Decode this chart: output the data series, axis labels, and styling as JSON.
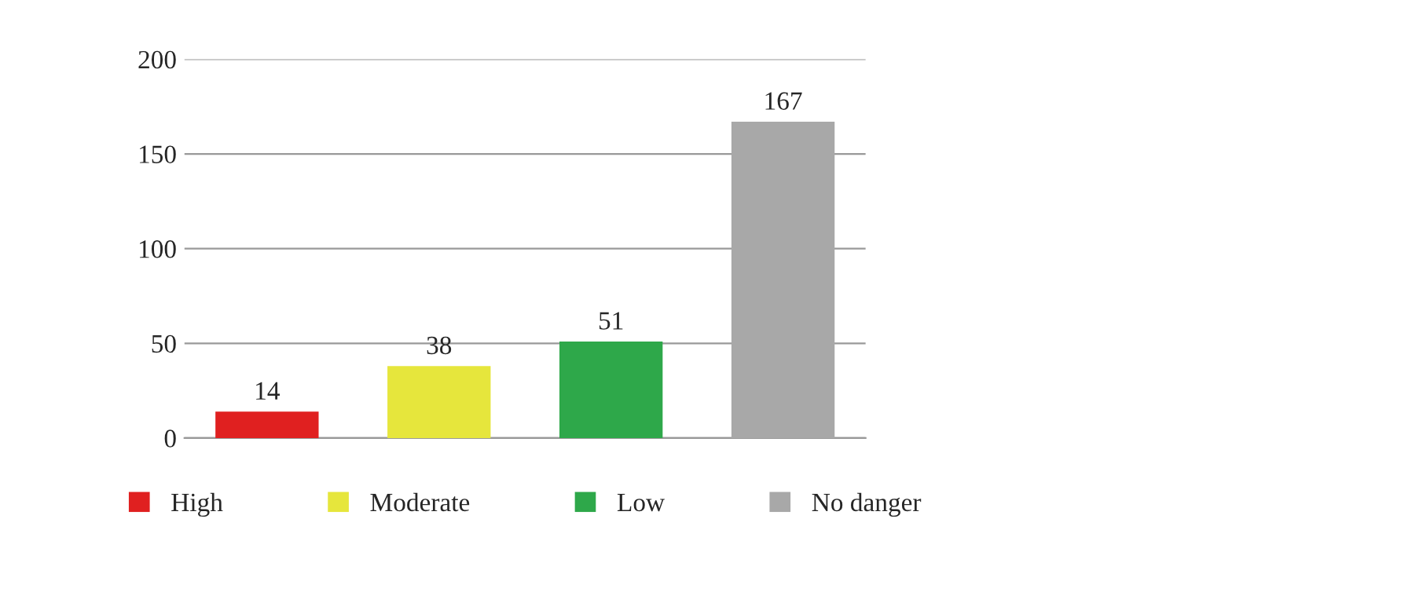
{
  "chart_data": {
    "type": "bar",
    "categories": [
      null,
      null,
      null,
      null
    ],
    "series": [
      {
        "name": "High",
        "color": "#e02020",
        "values": [
          14,
          null,
          null,
          null
        ]
      },
      {
        "name": "Moderate",
        "color": "#e6e63c",
        "values": [
          null,
          38,
          null,
          null
        ]
      },
      {
        "name": "Low",
        "color": "#2ea84a",
        "values": [
          null,
          null,
          51,
          null
        ]
      },
      {
        "name": "No danger",
        "color": "#a8a8a8",
        "values": [
          null,
          null,
          null,
          167
        ]
      }
    ],
    "ylim": [
      0,
      200
    ],
    "yticks": [
      0,
      50,
      100,
      150,
      200
    ],
    "grid": "y",
    "data_labels": true,
    "legend": "bottom",
    "tick_labels": "y"
  }
}
